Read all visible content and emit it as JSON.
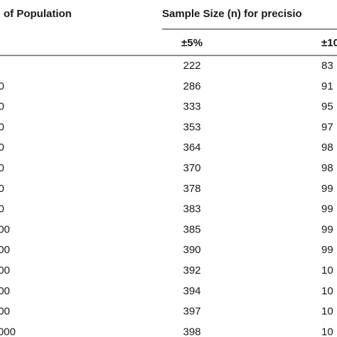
{
  "table": {
    "header": {
      "left": "of Population",
      "group": "Sample Size (n) for precisio",
      "col1": "±5%",
      "col2": "±10"
    },
    "rows": [
      [
        null,
        "222",
        "83"
      ],
      [
        "0",
        "286",
        "91"
      ],
      [
        "0",
        "333",
        "95"
      ],
      [
        "0",
        "353",
        "97"
      ],
      [
        "0",
        "364",
        "98"
      ],
      [
        "0",
        "370",
        "98"
      ],
      [
        "0",
        "378",
        "99"
      ],
      [
        "0",
        "383",
        "99"
      ],
      [
        "00",
        "385",
        "99"
      ],
      [
        "00",
        "390",
        "99"
      ],
      [
        "00",
        "392",
        "10"
      ],
      [
        "00",
        "394",
        "10"
      ],
      [
        "00",
        "397",
        "10"
      ],
      [
        "000",
        "398",
        "10"
      ]
    ]
  }
}
